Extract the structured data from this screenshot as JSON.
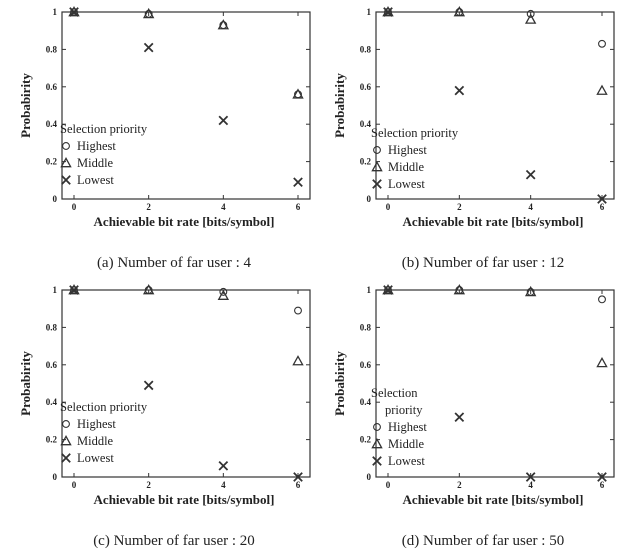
{
  "chart_data": [
    {
      "type": "scatter",
      "caption": "(a) Number of far user : 4",
      "xlabel": "Achievable bit rate [bits/symbol]",
      "ylabel": "Probabirity",
      "x_ticks": [
        "0",
        "2",
        "4",
        "6"
      ],
      "y_ticks": [
        "0",
        "0.2",
        "0.4",
        "0.6",
        "0.8",
        "1"
      ],
      "xlim": [
        0,
        6
      ],
      "ylim": [
        0,
        1
      ],
      "legend": {
        "title": [
          "Selection priority"
        ],
        "position": "center-left"
      },
      "series": [
        {
          "name": "Highest",
          "marker": "circle",
          "x": [
            0,
            2,
            4,
            6
          ],
          "y": [
            1.0,
            0.99,
            0.93,
            0.56
          ]
        },
        {
          "name": "Middle",
          "marker": "triangle",
          "x": [
            0,
            2,
            4,
            6
          ],
          "y": [
            1.0,
            0.99,
            0.93,
            0.56
          ]
        },
        {
          "name": "Lowest",
          "marker": "x",
          "x": [
            0,
            2,
            4,
            6
          ],
          "y": [
            1.0,
            0.81,
            0.42,
            0.09
          ]
        }
      ]
    },
    {
      "type": "scatter",
      "caption": "(b) Number of far user : 12",
      "xlabel": "Achievable bit rate [bits/symbol]",
      "ylabel": "Probabirity",
      "x_ticks": [
        "0",
        "2",
        "4",
        "6"
      ],
      "y_ticks": [
        "0",
        "0.2",
        "0.4",
        "0.6",
        "0.8",
        "1"
      ],
      "xlim": [
        0,
        6
      ],
      "ylim": [
        0,
        1
      ],
      "legend": {
        "title": [
          "Selection priority"
        ],
        "position": "center-left"
      },
      "series": [
        {
          "name": "Highest",
          "marker": "circle",
          "x": [
            0,
            2,
            4,
            6
          ],
          "y": [
            1.0,
            1.0,
            0.99,
            0.83
          ]
        },
        {
          "name": "Middle",
          "marker": "triangle",
          "x": [
            0,
            2,
            4,
            6
          ],
          "y": [
            1.0,
            1.0,
            0.96,
            0.58
          ]
        },
        {
          "name": "Lowest",
          "marker": "x",
          "x": [
            0,
            2,
            4,
            6
          ],
          "y": [
            1.0,
            0.58,
            0.13,
            0.0
          ]
        }
      ]
    },
    {
      "type": "scatter",
      "caption": "(c) Number of far user : 20",
      "xlabel": "Achievable bit rate [bits/symbol]",
      "ylabel": "Probabirity",
      "x_ticks": [
        "0",
        "2",
        "4",
        "6"
      ],
      "y_ticks": [
        "0",
        "0.2",
        "0.4",
        "0.6",
        "0.8",
        "1"
      ],
      "xlim": [
        0,
        6
      ],
      "ylim": [
        0,
        1
      ],
      "legend": {
        "title": [
          "Selection priority"
        ],
        "position": "center-left"
      },
      "series": [
        {
          "name": "Highest",
          "marker": "circle",
          "x": [
            0,
            2,
            4,
            6
          ],
          "y": [
            1.0,
            1.0,
            0.99,
            0.89
          ]
        },
        {
          "name": "Middle",
          "marker": "triangle",
          "x": [
            0,
            2,
            4,
            6
          ],
          "y": [
            1.0,
            1.0,
            0.97,
            0.62
          ]
        },
        {
          "name": "Lowest",
          "marker": "x",
          "x": [
            0,
            2,
            4,
            6
          ],
          "y": [
            1.0,
            0.49,
            0.06,
            0.0
          ]
        }
      ]
    },
    {
      "type": "scatter",
      "caption": "(d) Number of far user : 50",
      "xlabel": "Achievable bit rate [bits/symbol]",
      "ylabel": "Probabirity",
      "x_ticks": [
        "0",
        "2",
        "4",
        "6"
      ],
      "y_ticks": [
        "0",
        "0.2",
        "0.4",
        "0.6",
        "0.8",
        "1"
      ],
      "xlim": [
        0,
        6
      ],
      "ylim": [
        0,
        1
      ],
      "legend": {
        "title": [
          "Selection",
          "priority"
        ],
        "position": "lower-left"
      },
      "series": [
        {
          "name": "Highest",
          "marker": "circle",
          "x": [
            0,
            2,
            4,
            6
          ],
          "y": [
            1.0,
            1.0,
            0.99,
            0.95
          ]
        },
        {
          "name": "Middle",
          "marker": "triangle",
          "x": [
            0,
            2,
            4,
            6
          ],
          "y": [
            1.0,
            1.0,
            0.99,
            0.61
          ]
        },
        {
          "name": "Lowest",
          "marker": "x",
          "x": [
            0,
            2,
            4,
            6
          ],
          "y": [
            1.0,
            0.32,
            0.0,
            0.0
          ]
        }
      ]
    }
  ]
}
